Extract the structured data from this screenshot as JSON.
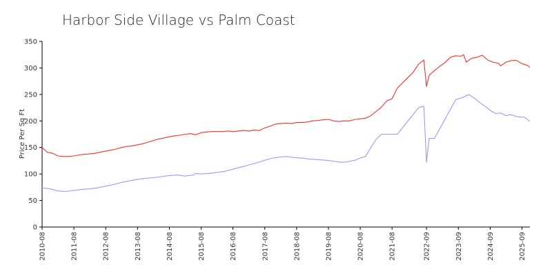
{
  "chart_data": {
    "type": "line",
    "title": "Harbor Side Village vs Palm Coast",
    "xlabel": "",
    "ylabel": "Price Per Sq Ft",
    "ylim": [
      0,
      350
    ],
    "xlim": [
      "2010-08",
      "2025-12"
    ],
    "grid": false,
    "legend": "none",
    "y_ticks": [
      0,
      50,
      100,
      150,
      200,
      250,
      300,
      350
    ],
    "x_ticks": [
      "2010-08",
      "2011-08",
      "2012-08",
      "2013-08",
      "2014-08",
      "2015-08",
      "2016-08",
      "2017-08",
      "2018-08",
      "2019-08",
      "2020-08",
      "2021-08",
      "2022-09",
      "2023-09",
      "2024-09",
      "2025-09"
    ],
    "series": [
      {
        "color": "#ff2a2a",
        "points": [
          [
            "2010-08",
            150
          ],
          [
            "2010-10",
            141
          ],
          [
            "2010-12",
            139
          ],
          [
            "2011-02",
            134
          ],
          [
            "2011-04",
            133
          ],
          [
            "2011-06",
            133
          ],
          [
            "2011-08",
            134
          ],
          [
            "2011-10",
            136
          ],
          [
            "2011-12",
            137
          ],
          [
            "2012-02",
            138
          ],
          [
            "2012-04",
            139
          ],
          [
            "2012-06",
            141
          ],
          [
            "2012-08",
            143
          ],
          [
            "2012-10",
            145
          ],
          [
            "2012-12",
            147
          ],
          [
            "2013-02",
            150
          ],
          [
            "2013-04",
            152
          ],
          [
            "2013-06",
            153
          ],
          [
            "2013-08",
            155
          ],
          [
            "2013-10",
            157
          ],
          [
            "2013-12",
            160
          ],
          [
            "2014-02",
            163
          ],
          [
            "2014-04",
            166
          ],
          [
            "2014-06",
            168
          ],
          [
            "2014-08",
            170
          ],
          [
            "2014-10",
            172
          ],
          [
            "2014-12",
            173
          ],
          [
            "2015-02",
            175
          ],
          [
            "2015-04",
            176
          ],
          [
            "2015-06",
            174
          ],
          [
            "2015-08",
            178
          ],
          [
            "2015-10",
            179
          ],
          [
            "2015-12",
            180
          ],
          [
            "2016-02",
            180
          ],
          [
            "2016-04",
            180
          ],
          [
            "2016-06",
            181
          ],
          [
            "2016-08",
            180
          ],
          [
            "2016-10",
            181
          ],
          [
            "2016-12",
            182
          ],
          [
            "2017-02",
            181
          ],
          [
            "2017-04",
            183
          ],
          [
            "2017-06",
            182
          ],
          [
            "2017-08",
            187
          ],
          [
            "2017-10",
            190
          ],
          [
            "2017-12",
            194
          ],
          [
            "2018-02",
            195
          ],
          [
            "2018-04",
            196
          ],
          [
            "2018-06",
            195
          ],
          [
            "2018-08",
            197
          ],
          [
            "2018-10",
            197
          ],
          [
            "2018-12",
            198
          ],
          [
            "2019-02",
            200
          ],
          [
            "2019-04",
            201
          ],
          [
            "2019-06",
            202
          ],
          [
            "2019-08",
            203
          ],
          [
            "2019-10",
            200
          ],
          [
            "2019-12",
            199
          ],
          [
            "2020-02",
            200
          ],
          [
            "2020-04",
            200
          ],
          [
            "2020-06",
            203
          ],
          [
            "2020-08",
            204
          ],
          [
            "2020-10",
            205
          ],
          [
            "2020-12",
            210
          ],
          [
            "2021-02",
            218
          ],
          [
            "2021-04",
            226
          ],
          [
            "2021-06",
            238
          ],
          [
            "2021-08",
            242
          ],
          [
            "2021-10",
            262
          ],
          [
            "2021-12",
            272
          ],
          [
            "2022-02",
            282
          ],
          [
            "2022-04",
            292
          ],
          [
            "2022-06",
            307
          ],
          [
            "2022-08",
            315
          ],
          [
            "2022-09",
            265
          ],
          [
            "2022-10",
            286
          ],
          [
            "2022-12",
            295
          ],
          [
            "2023-02",
            303
          ],
          [
            "2023-04",
            310
          ],
          [
            "2023-06",
            320
          ],
          [
            "2023-08",
            323
          ],
          [
            "2023-10",
            322
          ],
          [
            "2023-11",
            325
          ],
          [
            "2023-12",
            311
          ],
          [
            "2024-02",
            318
          ],
          [
            "2024-04",
            320
          ],
          [
            "2024-06",
            324
          ],
          [
            "2024-08",
            315
          ],
          [
            "2024-10",
            311
          ],
          [
            "2024-12",
            309
          ],
          [
            "2025-01",
            304
          ],
          [
            "2025-03",
            311
          ],
          [
            "2025-05",
            314
          ],
          [
            "2025-07",
            314
          ],
          [
            "2025-09",
            308
          ],
          [
            "2025-11",
            305
          ],
          [
            "2025-12",
            301
          ]
        ]
      },
      {
        "color": "#9999ff",
        "points": [
          [
            "2010-08",
            74
          ],
          [
            "2010-11",
            72
          ],
          [
            "2011-02",
            68
          ],
          [
            "2011-05",
            67
          ],
          [
            "2011-08",
            69
          ],
          [
            "2011-11",
            71
          ],
          [
            "2012-02",
            72
          ],
          [
            "2012-05",
            74
          ],
          [
            "2012-08",
            77
          ],
          [
            "2012-11",
            80
          ],
          [
            "2013-02",
            84
          ],
          [
            "2013-05",
            87
          ],
          [
            "2013-08",
            90
          ],
          [
            "2013-11",
            92
          ],
          [
            "2014-02",
            93
          ],
          [
            "2014-05",
            95
          ],
          [
            "2014-08",
            97
          ],
          [
            "2014-11",
            98
          ],
          [
            "2015-02",
            96
          ],
          [
            "2015-05",
            98
          ],
          [
            "2015-06",
            101
          ],
          [
            "2015-08",
            100
          ],
          [
            "2015-11",
            101
          ],
          [
            "2016-02",
            103
          ],
          [
            "2016-05",
            105
          ],
          [
            "2016-08",
            109
          ],
          [
            "2016-11",
            113
          ],
          [
            "2017-02",
            117
          ],
          [
            "2017-05",
            121
          ],
          [
            "2017-08",
            126
          ],
          [
            "2017-11",
            130
          ],
          [
            "2018-02",
            132
          ],
          [
            "2018-04",
            133
          ],
          [
            "2018-07",
            131
          ],
          [
            "2018-10",
            130
          ],
          [
            "2019-01",
            128
          ],
          [
            "2019-04",
            127
          ],
          [
            "2019-07",
            126
          ],
          [
            "2019-10",
            124
          ],
          [
            "2020-01",
            122
          ],
          [
            "2020-03",
            123
          ],
          [
            "2020-06",
            126
          ],
          [
            "2020-08",
            130
          ],
          [
            "2020-10",
            133
          ],
          [
            "2020-12",
            150
          ],
          [
            "2021-02",
            165
          ],
          [
            "2021-04",
            175
          ],
          [
            "2021-07",
            175
          ],
          [
            "2021-10",
            175
          ],
          [
            "2022-06",
            225
          ],
          [
            "2022-08",
            228
          ],
          [
            "2022-09",
            122
          ],
          [
            "2022-10",
            167
          ],
          [
            "2022-12",
            167
          ],
          [
            "2023-08",
            240
          ],
          [
            "2023-11",
            245
          ],
          [
            "2024-01",
            250
          ],
          [
            "2024-03",
            243
          ],
          [
            "2024-05",
            235
          ],
          [
            "2024-07",
            228
          ],
          [
            "2024-09",
            220
          ],
          [
            "2024-11",
            214
          ],
          [
            "2025-01",
            215
          ],
          [
            "2025-03",
            210
          ],
          [
            "2025-05",
            212
          ],
          [
            "2025-07",
            208
          ],
          [
            "2025-10",
            207
          ],
          [
            "2025-12",
            199
          ]
        ]
      }
    ]
  }
}
